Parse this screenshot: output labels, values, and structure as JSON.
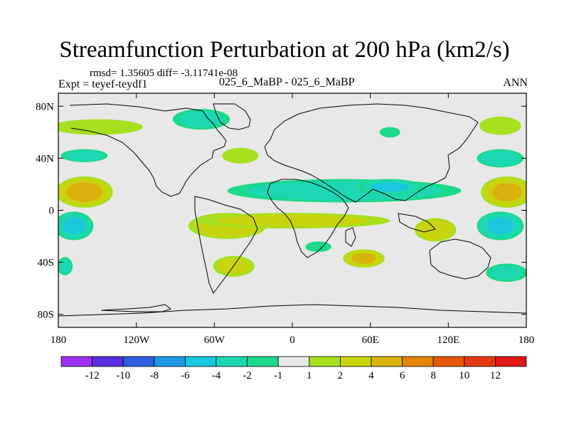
{
  "chart_data": {
    "type": "heatmap",
    "title": "Streamfunction Perturbation at 200 hPa (km2/s)",
    "stats_line": "rmsd= 1.35605 diff= -3.11741e-08",
    "experiment_label": "Expt = teyef-teydf1",
    "case_label": "025_6_MaBP - 025_6_MaBP",
    "season": "ANN",
    "xlabel": "",
    "ylabel": "",
    "xlim": [
      -180,
      180
    ],
    "ylim": [
      -90,
      90
    ],
    "x_ticks": [
      {
        "value": -180,
        "label": "180"
      },
      {
        "value": -120,
        "label": "120W"
      },
      {
        "value": -60,
        "label": "60W"
      },
      {
        "value": 0,
        "label": "0"
      },
      {
        "value": 60,
        "label": "60E"
      },
      {
        "value": 120,
        "label": "120E"
      },
      {
        "value": 180,
        "label": "180"
      }
    ],
    "y_ticks": [
      {
        "value": 80,
        "label": "80N"
      },
      {
        "value": 40,
        "label": "40N"
      },
      {
        "value": 0,
        "label": "0"
      },
      {
        "value": -40,
        "label": "40S"
      },
      {
        "value": -80,
        "label": "80S"
      }
    ],
    "colorbar": {
      "levels": [
        "-12",
        "-10",
        "-8",
        "-6",
        "-4",
        "-2",
        "-1",
        "1",
        "2",
        "4",
        "6",
        "8",
        "10",
        "12"
      ],
      "colors": [
        "#9b30f0",
        "#5a2de0",
        "#2f5ee0",
        "#1f96e6",
        "#18c8df",
        "#1bd8b2",
        "#1bd98a",
        "#e8e8e8",
        "#a6e01e",
        "#c9d40e",
        "#d9b20c",
        "#e4850a",
        "#e7590a",
        "#e23a0e",
        "#e21818"
      ]
    },
    "anomaly_regions": [
      {
        "name": "north-pacific-negative",
        "lon": -160,
        "lat": 42,
        "rlon": 18,
        "rlat": 5,
        "value": -2.5
      },
      {
        "name": "north-pacific-positive-band",
        "lon": -150,
        "lat": 64,
        "rlon": 35,
        "rlat": 6,
        "value": 1.5
      },
      {
        "name": "north-atlantic-negative",
        "lon": -70,
        "lat": 70,
        "rlon": 22,
        "rlat": 8,
        "value": -2.0
      },
      {
        "name": "north-atlantic-positive",
        "lon": -40,
        "lat": 42,
        "rlon": 14,
        "rlat": 6,
        "value": 1.5
      },
      {
        "name": "siberia-negative",
        "lon": 75,
        "lat": 60,
        "rlon": 8,
        "rlat": 4,
        "value": -1.5
      },
      {
        "name": "arctic-positive-east",
        "lon": 160,
        "lat": 65,
        "rlon": 16,
        "rlat": 7,
        "value": 1.5
      },
      {
        "name": "west-pacific-negative",
        "lon": 160,
        "lat": 40,
        "rlon": 18,
        "rlat": 7,
        "value": -3.0
      },
      {
        "name": "tropical-east-pacific-positive",
        "lon": -160,
        "lat": 14,
        "rlon": 22,
        "rlat": 12,
        "value": 4.5
      },
      {
        "name": "tropical-west-pacific-positive",
        "lon": 165,
        "lat": 14,
        "rlon": 20,
        "rlat": 12,
        "value": 4.0
      },
      {
        "name": "northern-tropics-negative-band",
        "lon": 40,
        "lat": 15,
        "rlon": 90,
        "rlat": 9,
        "value": -3.0
      },
      {
        "name": "asia-negative-core",
        "lon": 75,
        "lat": 18,
        "rlon": 25,
        "rlat": 6,
        "value": -4.0
      },
      {
        "name": "south-pacific-negative",
        "lon": -168,
        "lat": -12,
        "rlon": 15,
        "rlat": 11,
        "value": -4.0
      },
      {
        "name": "south-west-pacific-negative",
        "lon": 160,
        "lat": -12,
        "rlon": 18,
        "rlat": 11,
        "value": -4.0
      },
      {
        "name": "south-america-positive",
        "lon": -50,
        "lat": -12,
        "rlon": 30,
        "rlat": 10,
        "value": 3.5
      },
      {
        "name": "southern-tropics-positive-band",
        "lon": 0,
        "lat": -8,
        "rlon": 75,
        "rlat": 6,
        "value": 2.0
      },
      {
        "name": "indian-ocean-positive",
        "lon": 110,
        "lat": -15,
        "rlon": 16,
        "rlat": 9,
        "value": 3.5
      },
      {
        "name": "south-atlantic-negative",
        "lon": 20,
        "lat": -28,
        "rlon": 10,
        "rlat": 4,
        "value": -1.5
      },
      {
        "name": "south-indian-positive",
        "lon": 55,
        "lat": -37,
        "rlon": 16,
        "rlat": 7,
        "value": 4.0
      },
      {
        "name": "southern-ocean-positive",
        "lon": -45,
        "lat": -43,
        "rlon": 16,
        "rlat": 8,
        "value": 2.0
      },
      {
        "name": "far-south-pacific-negative",
        "lon": -175,
        "lat": -43,
        "rlon": 6,
        "rlat": 7,
        "value": -2.0
      },
      {
        "name": "far-south-east-negative",
        "lon": 165,
        "lat": -48,
        "rlon": 16,
        "rlat": 7,
        "value": -2.0
      }
    ]
  }
}
